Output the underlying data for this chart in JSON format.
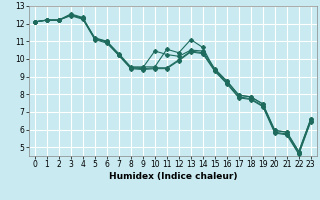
{
  "title": "",
  "xlabel": "Humidex (Indice chaleur)",
  "ylabel": "",
  "background_color": "#c8eaf0",
  "grid_color": "#ffffff",
  "line_color": "#1e6b5e",
  "xlim": [
    -0.5,
    23.5
  ],
  "ylim": [
    4.5,
    13.0
  ],
  "xtick_labels": [
    "0",
    "1",
    "2",
    "3",
    "4",
    "5",
    "6",
    "7",
    "8",
    "9",
    "10",
    "11",
    "12",
    "13",
    "14",
    "15",
    "16",
    "17",
    "18",
    "19",
    "20",
    "21",
    "22",
    "23"
  ],
  "xtick_positions": [
    0,
    1,
    2,
    3,
    4,
    5,
    6,
    7,
    8,
    9,
    10,
    11,
    12,
    13,
    14,
    15,
    16,
    17,
    18,
    19,
    20,
    21,
    22,
    23
  ],
  "yticks": [
    5,
    6,
    7,
    8,
    9,
    10,
    11,
    12,
    13
  ],
  "line1_x": [
    0,
    1,
    2,
    3,
    4,
    5,
    6,
    7,
    8,
    9,
    10,
    11,
    12,
    13,
    14,
    15,
    16,
    17,
    18,
    19,
    20,
    21,
    22,
    23
  ],
  "line1_y": [
    12.1,
    12.2,
    12.2,
    12.55,
    12.35,
    11.15,
    11.0,
    10.3,
    9.55,
    9.55,
    9.55,
    10.55,
    10.35,
    11.1,
    10.65,
    9.35,
    8.75,
    7.95,
    7.85,
    7.45,
    5.95,
    5.85,
    4.75,
    6.6
  ],
  "line2_x": [
    0,
    1,
    2,
    3,
    4,
    5,
    6,
    7,
    8,
    9,
    10,
    11,
    12,
    13,
    14,
    15,
    16,
    17,
    18,
    19,
    20,
    21,
    22,
    23
  ],
  "line2_y": [
    12.1,
    12.2,
    12.2,
    12.5,
    12.3,
    11.2,
    11.0,
    10.2,
    9.5,
    9.5,
    10.45,
    10.25,
    10.15,
    10.5,
    10.45,
    9.45,
    8.75,
    7.95,
    7.85,
    7.45,
    5.95,
    5.85,
    4.75,
    6.6
  ],
  "line3_x": [
    0,
    1,
    2,
    3,
    4,
    5,
    6,
    7,
    8,
    9,
    10,
    11,
    12,
    13,
    14,
    15,
    16,
    17,
    18,
    19,
    20,
    21,
    22,
    23
  ],
  "line3_y": [
    12.1,
    12.2,
    12.2,
    12.5,
    12.3,
    11.15,
    10.95,
    10.25,
    9.5,
    9.45,
    9.5,
    9.5,
    9.95,
    10.45,
    10.35,
    9.35,
    8.65,
    7.85,
    7.75,
    7.35,
    5.85,
    5.75,
    4.65,
    6.5
  ],
  "line4_x": [
    0,
    1,
    2,
    3,
    4,
    5,
    6,
    7,
    8,
    9,
    10,
    11,
    12,
    13,
    14,
    15,
    16,
    17,
    18,
    19,
    20,
    21,
    22,
    23
  ],
  "line4_y": [
    12.1,
    12.2,
    12.2,
    12.45,
    12.25,
    11.1,
    10.9,
    10.2,
    9.45,
    9.4,
    9.45,
    9.45,
    9.9,
    10.4,
    10.3,
    9.3,
    8.6,
    7.8,
    7.7,
    7.3,
    5.8,
    5.7,
    4.6,
    6.45
  ]
}
